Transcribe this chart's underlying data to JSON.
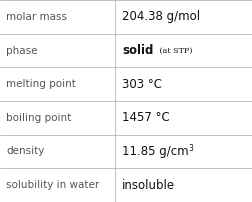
{
  "rows": [
    {
      "label": "molar mass",
      "value_parts": [
        {
          "text": "204.38 g/mol",
          "style": "normal"
        }
      ]
    },
    {
      "label": "phase",
      "value_parts": [
        {
          "text": "solid",
          "style": "bold"
        },
        {
          "text": " (at STP)",
          "style": "small"
        }
      ]
    },
    {
      "label": "melting point",
      "value_parts": [
        {
          "text": "303 °C",
          "style": "normal"
        }
      ]
    },
    {
      "label": "boiling point",
      "value_parts": [
        {
          "text": "1457 °C",
          "style": "normal"
        }
      ]
    },
    {
      "label": "density",
      "value_parts": [
        {
          "text": "11.85 g/cm",
          "style": "normal"
        },
        {
          "text": "3",
          "style": "super"
        }
      ]
    },
    {
      "label": "solubility in water",
      "value_parts": [
        {
          "text": "insoluble",
          "style": "normal"
        }
      ]
    }
  ],
  "bg_color": "#ffffff",
  "grid_color": "#aaaaaa",
  "label_color": "#555555",
  "value_color": "#111111",
  "label_fontsize": 7.5,
  "value_fontsize": 8.5,
  "small_fontsize": 5.8,
  "super_fontsize": 5.5,
  "col_split": 0.455,
  "fig_width": 2.52,
  "fig_height": 2.02,
  "dpi": 100
}
